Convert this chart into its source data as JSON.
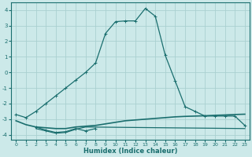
{
  "xlabel": "Humidex (Indice chaleur)",
  "xlim": [
    -0.5,
    23.5
  ],
  "ylim": [
    -4.3,
    4.5
  ],
  "yticks": [
    -4,
    -3,
    -2,
    -1,
    0,
    1,
    2,
    3,
    4
  ],
  "xticks": [
    0,
    1,
    2,
    3,
    4,
    5,
    6,
    7,
    8,
    9,
    10,
    11,
    12,
    13,
    14,
    15,
    16,
    17,
    18,
    19,
    20,
    21,
    22,
    23
  ],
  "bg_color": "#cce9e9",
  "grid_color": "#aad0d0",
  "line_color": "#1a6e6e",
  "line1_x": [
    0,
    1,
    2,
    3,
    4,
    5,
    6,
    7,
    8,
    9,
    10,
    11,
    12,
    13,
    14,
    15,
    16,
    17,
    18,
    19,
    20,
    21,
    22,
    23
  ],
  "line1_y": [
    -2.7,
    -2.9,
    -2.5,
    -2.0,
    -1.5,
    -1.0,
    -0.5,
    0.0,
    0.6,
    2.5,
    3.25,
    3.3,
    3.3,
    4.1,
    3.6,
    1.1,
    -0.55,
    -2.2,
    -2.5,
    -2.8,
    -2.8,
    -2.8,
    -2.8,
    -3.4
  ],
  "line2_x": [
    0,
    1,
    2,
    3,
    4,
    5,
    6,
    7,
    8,
    9,
    10,
    11,
    12,
    13,
    14,
    15,
    16,
    17,
    18,
    19,
    20,
    21,
    22,
    23
  ],
  "line2_y": [
    -3.1,
    -3.35,
    -3.5,
    -3.55,
    -3.6,
    -3.6,
    -3.5,
    -3.45,
    -3.4,
    -3.3,
    -3.2,
    -3.1,
    -3.05,
    -3.0,
    -2.95,
    -2.9,
    -2.85,
    -2.82,
    -2.8,
    -2.78,
    -2.75,
    -2.73,
    -2.7,
    -2.68
  ],
  "line3_x": [
    2,
    3,
    4,
    5,
    6,
    7,
    8
  ],
  "line3_y": [
    -3.5,
    -3.7,
    -3.85,
    -3.8,
    -3.6,
    -3.75,
    -3.6
  ],
  "line4_x": [
    2,
    3,
    4,
    5,
    6,
    7,
    23
  ],
  "line4_y": [
    -3.6,
    -3.75,
    -3.9,
    -3.85,
    -3.65,
    -3.5,
    -3.6
  ]
}
